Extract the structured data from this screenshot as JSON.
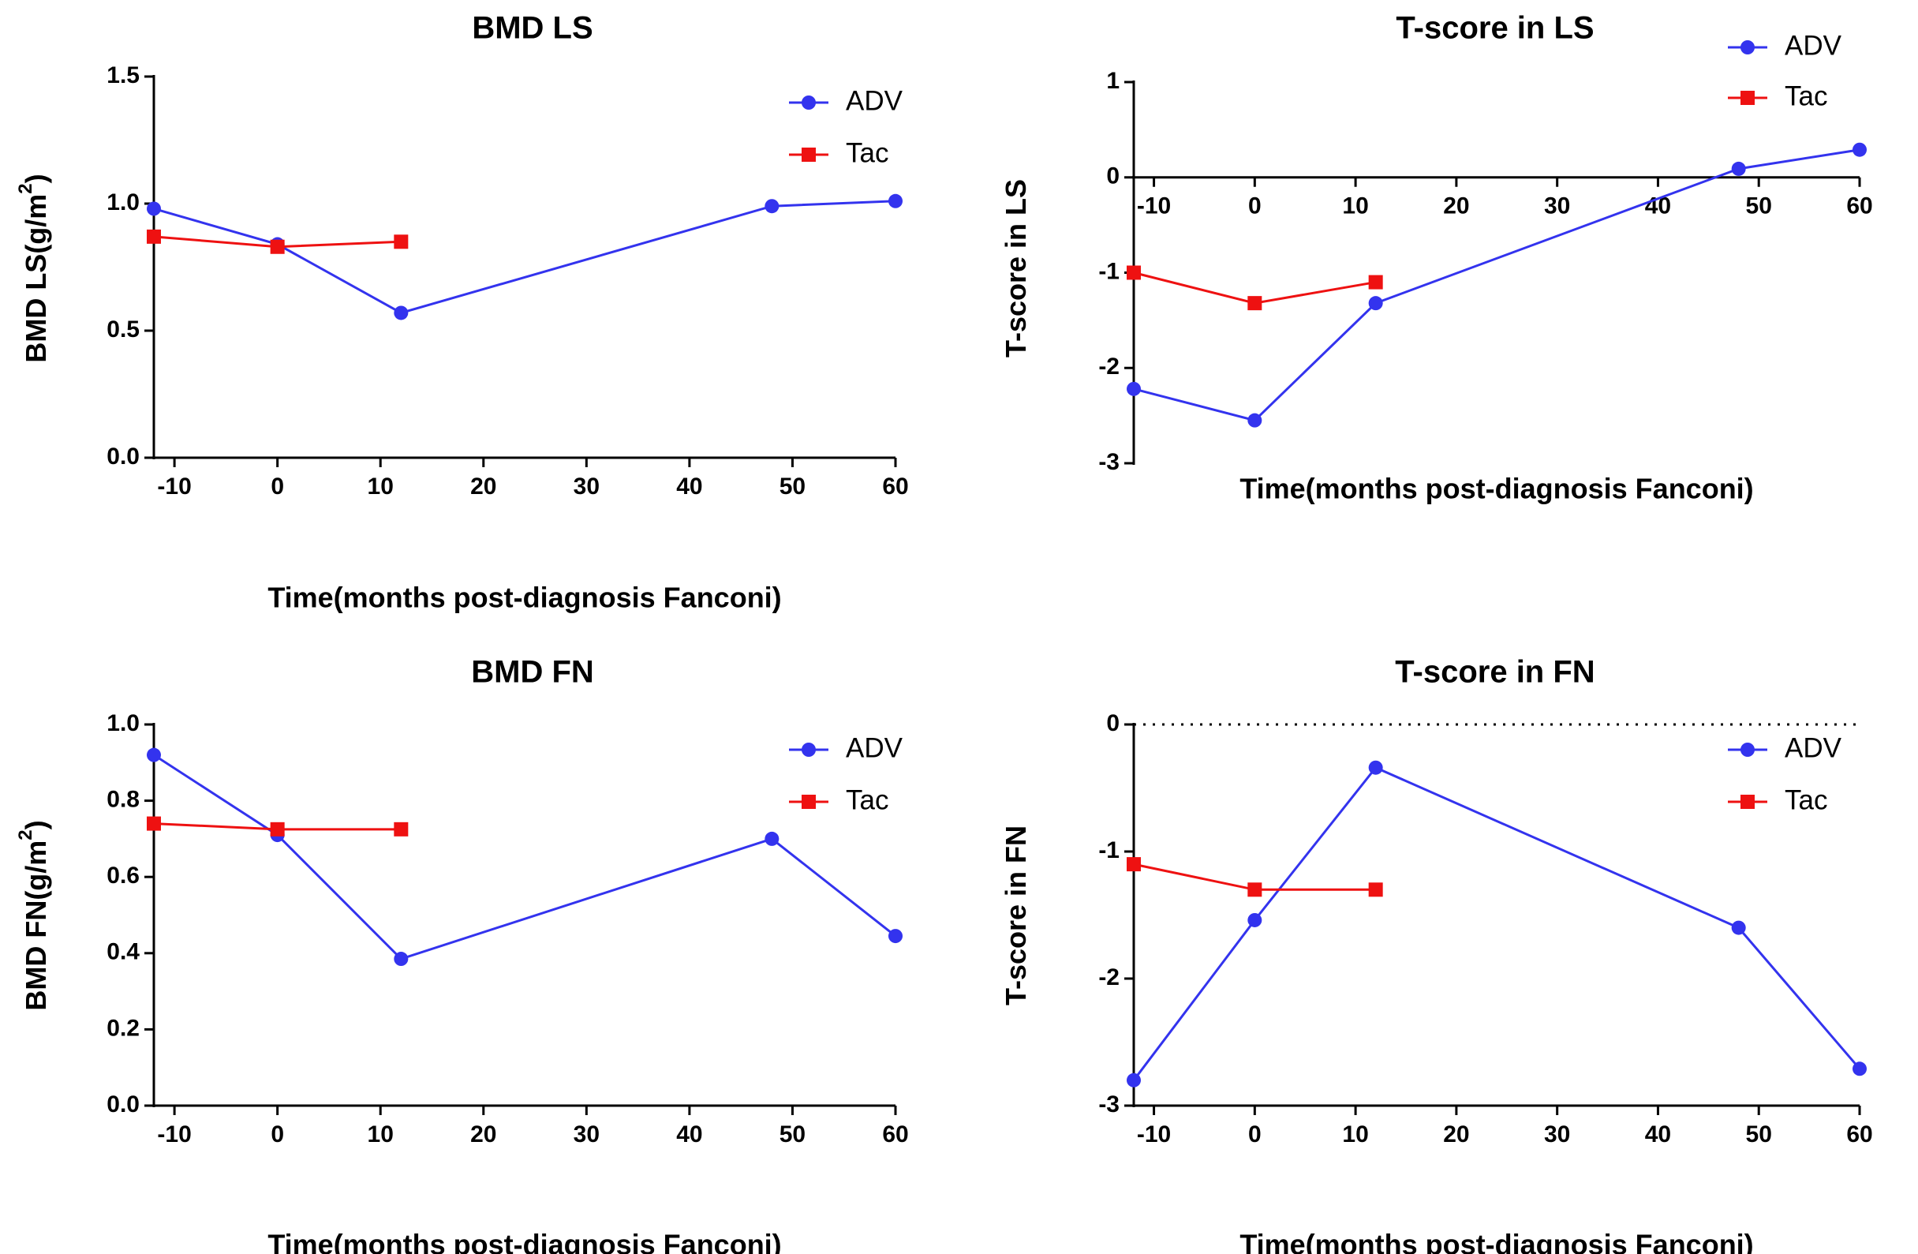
{
  "chart_data": [
    {
      "type": "line",
      "title": "BMD LS",
      "xlabel": "Time(months post-diagnosis Fanconi)",
      "ylabel_main": "BMD LS(g/m",
      "ylabel_sup": "2",
      "ylabel_close": ")",
      "xlim": [
        -12,
        60
      ],
      "ylim": [
        0,
        1.5
      ],
      "xticks": [
        -10,
        0,
        10,
        20,
        30,
        40,
        50,
        60
      ],
      "yticks": [
        0,
        0.5,
        1.0,
        1.5
      ],
      "ytick_labels": [
        "0.0",
        "0.5",
        "1.0",
        "1.5"
      ],
      "zero_line": "none",
      "legend_position": "top-right",
      "series": [
        {
          "name": "ADV",
          "color": "#3333ee",
          "marker": "circle",
          "x": [
            -12,
            0,
            12,
            48,
            60
          ],
          "y": [
            0.98,
            0.84,
            0.57,
            0.99,
            1.01
          ]
        },
        {
          "name": "Tac",
          "color": "#ee1111",
          "marker": "square",
          "x": [
            -12,
            0,
            12
          ],
          "y": [
            0.87,
            0.83,
            0.85
          ]
        }
      ]
    },
    {
      "type": "line",
      "title": "T-score in LS",
      "xlabel": "Time(months post-diagnosis Fanconi)",
      "ylabel_main": "T-score in LS",
      "xlim": [
        -12,
        60
      ],
      "ylim": [
        -3,
        1
      ],
      "xticks": [
        -10,
        0,
        10,
        20,
        30,
        40,
        50,
        60
      ],
      "yticks": [
        -3,
        -2,
        -1,
        0,
        1
      ],
      "ytick_labels": [
        "-3",
        "-2",
        "-1",
        "0",
        "1"
      ],
      "zero_line": "solid",
      "legend_position": "top-right",
      "series": [
        {
          "name": "ADV",
          "color": "#3333ee",
          "marker": "circle",
          "x": [
            -12,
            0,
            12,
            48,
            60
          ],
          "y": [
            -2.22,
            -2.55,
            -1.32,
            0.09,
            0.29
          ]
        },
        {
          "name": "Tac",
          "color": "#ee1111",
          "marker": "square",
          "x": [
            -12,
            0,
            12
          ],
          "y": [
            -1.0,
            -1.32,
            -1.1
          ]
        }
      ]
    },
    {
      "type": "line",
      "title": "BMD FN",
      "xlabel": "Time(months post-diagnosis Fanconi)",
      "ylabel_main": "BMD FN(g/m",
      "ylabel_sup": "2",
      "ylabel_close": ")",
      "xlim": [
        -12,
        60
      ],
      "ylim": [
        0,
        1.0
      ],
      "xticks": [
        -10,
        0,
        10,
        20,
        30,
        40,
        50,
        60
      ],
      "yticks": [
        0,
        0.2,
        0.4,
        0.6,
        0.8,
        1.0
      ],
      "ytick_labels": [
        "0.0",
        "0.2",
        "0.4",
        "0.6",
        "0.8",
        "1.0"
      ],
      "zero_line": "none",
      "legend_position": "top-right",
      "series": [
        {
          "name": "ADV",
          "color": "#3333ee",
          "marker": "circle",
          "x": [
            -12,
            0,
            12,
            48,
            60
          ],
          "y": [
            0.92,
            0.71,
            0.385,
            0.7,
            0.445
          ]
        },
        {
          "name": "Tac",
          "color": "#ee1111",
          "marker": "square",
          "x": [
            -12,
            0,
            12
          ],
          "y": [
            0.74,
            0.725,
            0.725
          ]
        }
      ]
    },
    {
      "type": "line",
      "title": "T-score in FN",
      "xlabel": "Time(months post-diagnosis Fanconi)",
      "ylabel_main": "T-score in FN",
      "xlim": [
        -12,
        60
      ],
      "ylim": [
        -3,
        0
      ],
      "xticks": [
        -10,
        0,
        10,
        20,
        30,
        40,
        50,
        60
      ],
      "yticks": [
        -3,
        -2,
        -1,
        0
      ],
      "ytick_labels": [
        "-3",
        "-2",
        "-1",
        "0"
      ],
      "zero_line": "dotted",
      "legend_position": "top-right",
      "series": [
        {
          "name": "ADV",
          "color": "#3333ee",
          "marker": "circle",
          "x": [
            -12,
            0,
            12,
            48,
            60
          ],
          "y": [
            -2.8,
            -1.54,
            -0.34,
            -1.6,
            -2.71
          ]
        },
        {
          "name": "Tac",
          "color": "#ee1111",
          "marker": "square",
          "x": [
            -12,
            0,
            12
          ],
          "y": [
            -1.1,
            -1.3,
            -1.3
          ]
        }
      ]
    }
  ]
}
